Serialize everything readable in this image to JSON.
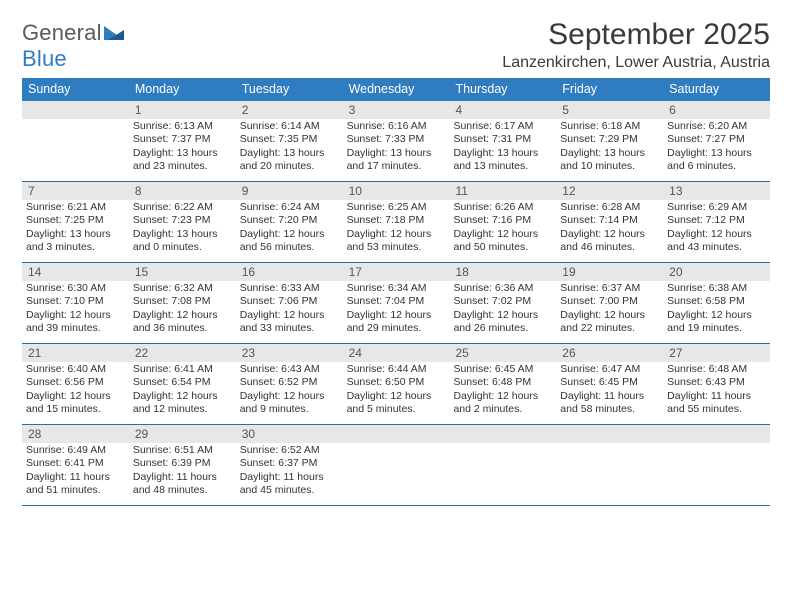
{
  "logo": {
    "text1": "General",
    "text2": "Blue"
  },
  "title": "September 2025",
  "location": "Lanzenkirchen, Lower Austria, Austria",
  "colors": {
    "header_bg": "#2f7dc0",
    "header_text": "#ffffff",
    "numrow_bg": "#e7e7e7",
    "border": "#2f6aa0",
    "body_text": "#333333",
    "logo_gray": "#5a5a5a",
    "logo_blue": "#2f7dc0"
  },
  "daynames": [
    "Sunday",
    "Monday",
    "Tuesday",
    "Wednesday",
    "Thursday",
    "Friday",
    "Saturday"
  ],
  "weeks": [
    {
      "nums": [
        "",
        "1",
        "2",
        "3",
        "4",
        "5",
        "6"
      ],
      "cells": [
        {
          "lines": []
        },
        {
          "lines": [
            "Sunrise: 6:13 AM",
            "Sunset: 7:37 PM",
            "Daylight: 13 hours",
            "and 23 minutes."
          ]
        },
        {
          "lines": [
            "Sunrise: 6:14 AM",
            "Sunset: 7:35 PM",
            "Daylight: 13 hours",
            "and 20 minutes."
          ]
        },
        {
          "lines": [
            "Sunrise: 6:16 AM",
            "Sunset: 7:33 PM",
            "Daylight: 13 hours",
            "and 17 minutes."
          ]
        },
        {
          "lines": [
            "Sunrise: 6:17 AM",
            "Sunset: 7:31 PM",
            "Daylight: 13 hours",
            "and 13 minutes."
          ]
        },
        {
          "lines": [
            "Sunrise: 6:18 AM",
            "Sunset: 7:29 PM",
            "Daylight: 13 hours",
            "and 10 minutes."
          ]
        },
        {
          "lines": [
            "Sunrise: 6:20 AM",
            "Sunset: 7:27 PM",
            "Daylight: 13 hours",
            "and 6 minutes."
          ]
        }
      ]
    },
    {
      "nums": [
        "7",
        "8",
        "9",
        "10",
        "11",
        "12",
        "13"
      ],
      "cells": [
        {
          "lines": [
            "Sunrise: 6:21 AM",
            "Sunset: 7:25 PM",
            "Daylight: 13 hours",
            "and 3 minutes."
          ]
        },
        {
          "lines": [
            "Sunrise: 6:22 AM",
            "Sunset: 7:23 PM",
            "Daylight: 13 hours",
            "and 0 minutes."
          ]
        },
        {
          "lines": [
            "Sunrise: 6:24 AM",
            "Sunset: 7:20 PM",
            "Daylight: 12 hours",
            "and 56 minutes."
          ]
        },
        {
          "lines": [
            "Sunrise: 6:25 AM",
            "Sunset: 7:18 PM",
            "Daylight: 12 hours",
            "and 53 minutes."
          ]
        },
        {
          "lines": [
            "Sunrise: 6:26 AM",
            "Sunset: 7:16 PM",
            "Daylight: 12 hours",
            "and 50 minutes."
          ]
        },
        {
          "lines": [
            "Sunrise: 6:28 AM",
            "Sunset: 7:14 PM",
            "Daylight: 12 hours",
            "and 46 minutes."
          ]
        },
        {
          "lines": [
            "Sunrise: 6:29 AM",
            "Sunset: 7:12 PM",
            "Daylight: 12 hours",
            "and 43 minutes."
          ]
        }
      ]
    },
    {
      "nums": [
        "14",
        "15",
        "16",
        "17",
        "18",
        "19",
        "20"
      ],
      "cells": [
        {
          "lines": [
            "Sunrise: 6:30 AM",
            "Sunset: 7:10 PM",
            "Daylight: 12 hours",
            "and 39 minutes."
          ]
        },
        {
          "lines": [
            "Sunrise: 6:32 AM",
            "Sunset: 7:08 PM",
            "Daylight: 12 hours",
            "and 36 minutes."
          ]
        },
        {
          "lines": [
            "Sunrise: 6:33 AM",
            "Sunset: 7:06 PM",
            "Daylight: 12 hours",
            "and 33 minutes."
          ]
        },
        {
          "lines": [
            "Sunrise: 6:34 AM",
            "Sunset: 7:04 PM",
            "Daylight: 12 hours",
            "and 29 minutes."
          ]
        },
        {
          "lines": [
            "Sunrise: 6:36 AM",
            "Sunset: 7:02 PM",
            "Daylight: 12 hours",
            "and 26 minutes."
          ]
        },
        {
          "lines": [
            "Sunrise: 6:37 AM",
            "Sunset: 7:00 PM",
            "Daylight: 12 hours",
            "and 22 minutes."
          ]
        },
        {
          "lines": [
            "Sunrise: 6:38 AM",
            "Sunset: 6:58 PM",
            "Daylight: 12 hours",
            "and 19 minutes."
          ]
        }
      ]
    },
    {
      "nums": [
        "21",
        "22",
        "23",
        "24",
        "25",
        "26",
        "27"
      ],
      "cells": [
        {
          "lines": [
            "Sunrise: 6:40 AM",
            "Sunset: 6:56 PM",
            "Daylight: 12 hours",
            "and 15 minutes."
          ]
        },
        {
          "lines": [
            "Sunrise: 6:41 AM",
            "Sunset: 6:54 PM",
            "Daylight: 12 hours",
            "and 12 minutes."
          ]
        },
        {
          "lines": [
            "Sunrise: 6:43 AM",
            "Sunset: 6:52 PM",
            "Daylight: 12 hours",
            "and 9 minutes."
          ]
        },
        {
          "lines": [
            "Sunrise: 6:44 AM",
            "Sunset: 6:50 PM",
            "Daylight: 12 hours",
            "and 5 minutes."
          ]
        },
        {
          "lines": [
            "Sunrise: 6:45 AM",
            "Sunset: 6:48 PM",
            "Daylight: 12 hours",
            "and 2 minutes."
          ]
        },
        {
          "lines": [
            "Sunrise: 6:47 AM",
            "Sunset: 6:45 PM",
            "Daylight: 11 hours",
            "and 58 minutes."
          ]
        },
        {
          "lines": [
            "Sunrise: 6:48 AM",
            "Sunset: 6:43 PM",
            "Daylight: 11 hours",
            "and 55 minutes."
          ]
        }
      ]
    },
    {
      "nums": [
        "28",
        "29",
        "30",
        "",
        "",
        "",
        ""
      ],
      "cells": [
        {
          "lines": [
            "Sunrise: 6:49 AM",
            "Sunset: 6:41 PM",
            "Daylight: 11 hours",
            "and 51 minutes."
          ]
        },
        {
          "lines": [
            "Sunrise: 6:51 AM",
            "Sunset: 6:39 PM",
            "Daylight: 11 hours",
            "and 48 minutes."
          ]
        },
        {
          "lines": [
            "Sunrise: 6:52 AM",
            "Sunset: 6:37 PM",
            "Daylight: 11 hours",
            "and 45 minutes."
          ]
        },
        {
          "lines": []
        },
        {
          "lines": []
        },
        {
          "lines": []
        },
        {
          "lines": []
        }
      ]
    }
  ]
}
